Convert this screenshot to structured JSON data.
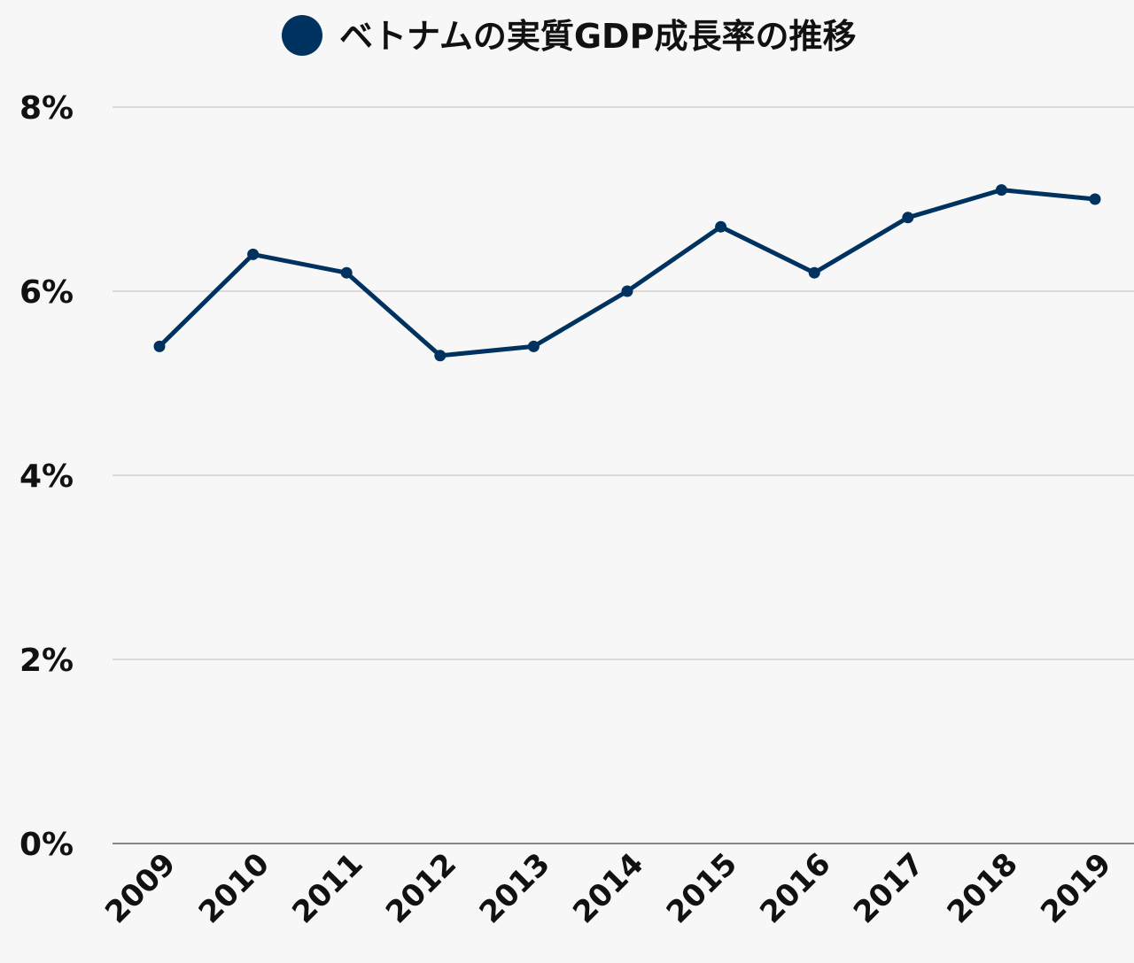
{
  "chart_data": {
    "type": "line",
    "categories": [
      "2009",
      "2010",
      "2011",
      "2012",
      "2013",
      "2014",
      "2015",
      "2016",
      "2017",
      "2018",
      "2019"
    ],
    "series": [
      {
        "name": "ベトナムの実質GDP成長率の推移",
        "color": "#00325f",
        "values": [
          5.4,
          6.4,
          6.2,
          5.3,
          5.4,
          6.0,
          6.7,
          6.2,
          6.8,
          7.1,
          7.0
        ]
      }
    ],
    "ylim": [
      0,
      8
    ],
    "yticks": [
      {
        "value": 0,
        "label": "0%"
      },
      {
        "value": 2,
        "label": "2%"
      },
      {
        "value": 4,
        "label": "4%"
      },
      {
        "value": 6,
        "label": "6%"
      },
      {
        "value": 8,
        "label": "8%"
      }
    ],
    "grid": true,
    "legend": "top"
  }
}
